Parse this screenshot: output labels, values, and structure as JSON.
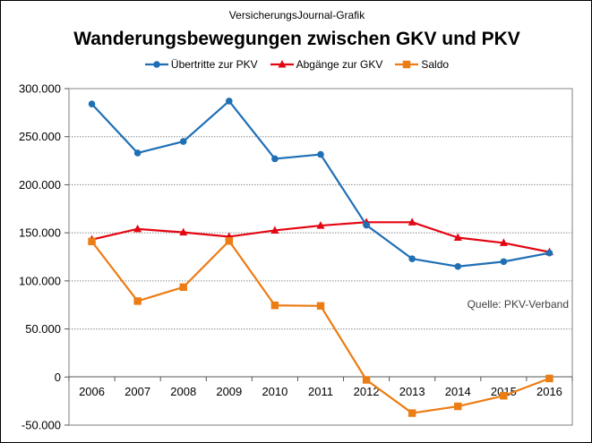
{
  "header": {
    "source_label": "VersicherungsJournal-Grafik",
    "title": "Wanderungsbewegungen zwischen GKV und PKV"
  },
  "chart_data": {
    "type": "line",
    "title": "Wanderungsbewegungen zwischen GKV und PKV",
    "xlabel": "",
    "ylabel": "",
    "categories": [
      "2006",
      "2007",
      "2008",
      "2009",
      "2010",
      "2011",
      "2012",
      "2013",
      "2014",
      "2015",
      "2016"
    ],
    "ylim": [
      -50000,
      300000
    ],
    "yticks": [
      -50000,
      0,
      50000,
      100000,
      150000,
      200000,
      250000,
      300000
    ],
    "ytick_labels": [
      "-50.000",
      "0",
      "50.000",
      "100.000",
      "150.000",
      "200.000",
      "250.000",
      "300.000"
    ],
    "grid": true,
    "legend_position": "top-center",
    "series": [
      {
        "name": "Übertritte zur PKV",
        "color": "#1f6fb4",
        "marker": "circle",
        "values": [
          284000,
          233000,
          245000,
          287000,
          227000,
          231500,
          158000,
          123000,
          115000,
          120000,
          129000
        ]
      },
      {
        "name": "Abgänge zur GKV",
        "color": "#e30613",
        "marker": "triangle",
        "values": [
          143000,
          154000,
          150500,
          146000,
          152500,
          157500,
          161000,
          161000,
          145000,
          139500,
          130000
        ]
      },
      {
        "name": "Saldo",
        "color": "#ec7c14",
        "marker": "square",
        "values": [
          141000,
          79000,
          93500,
          141500,
          74500,
          74000,
          -3000,
          -37500,
          -30500,
          -19500,
          -1500
        ]
      }
    ],
    "annotation": "Quelle: PKV-Verband"
  }
}
